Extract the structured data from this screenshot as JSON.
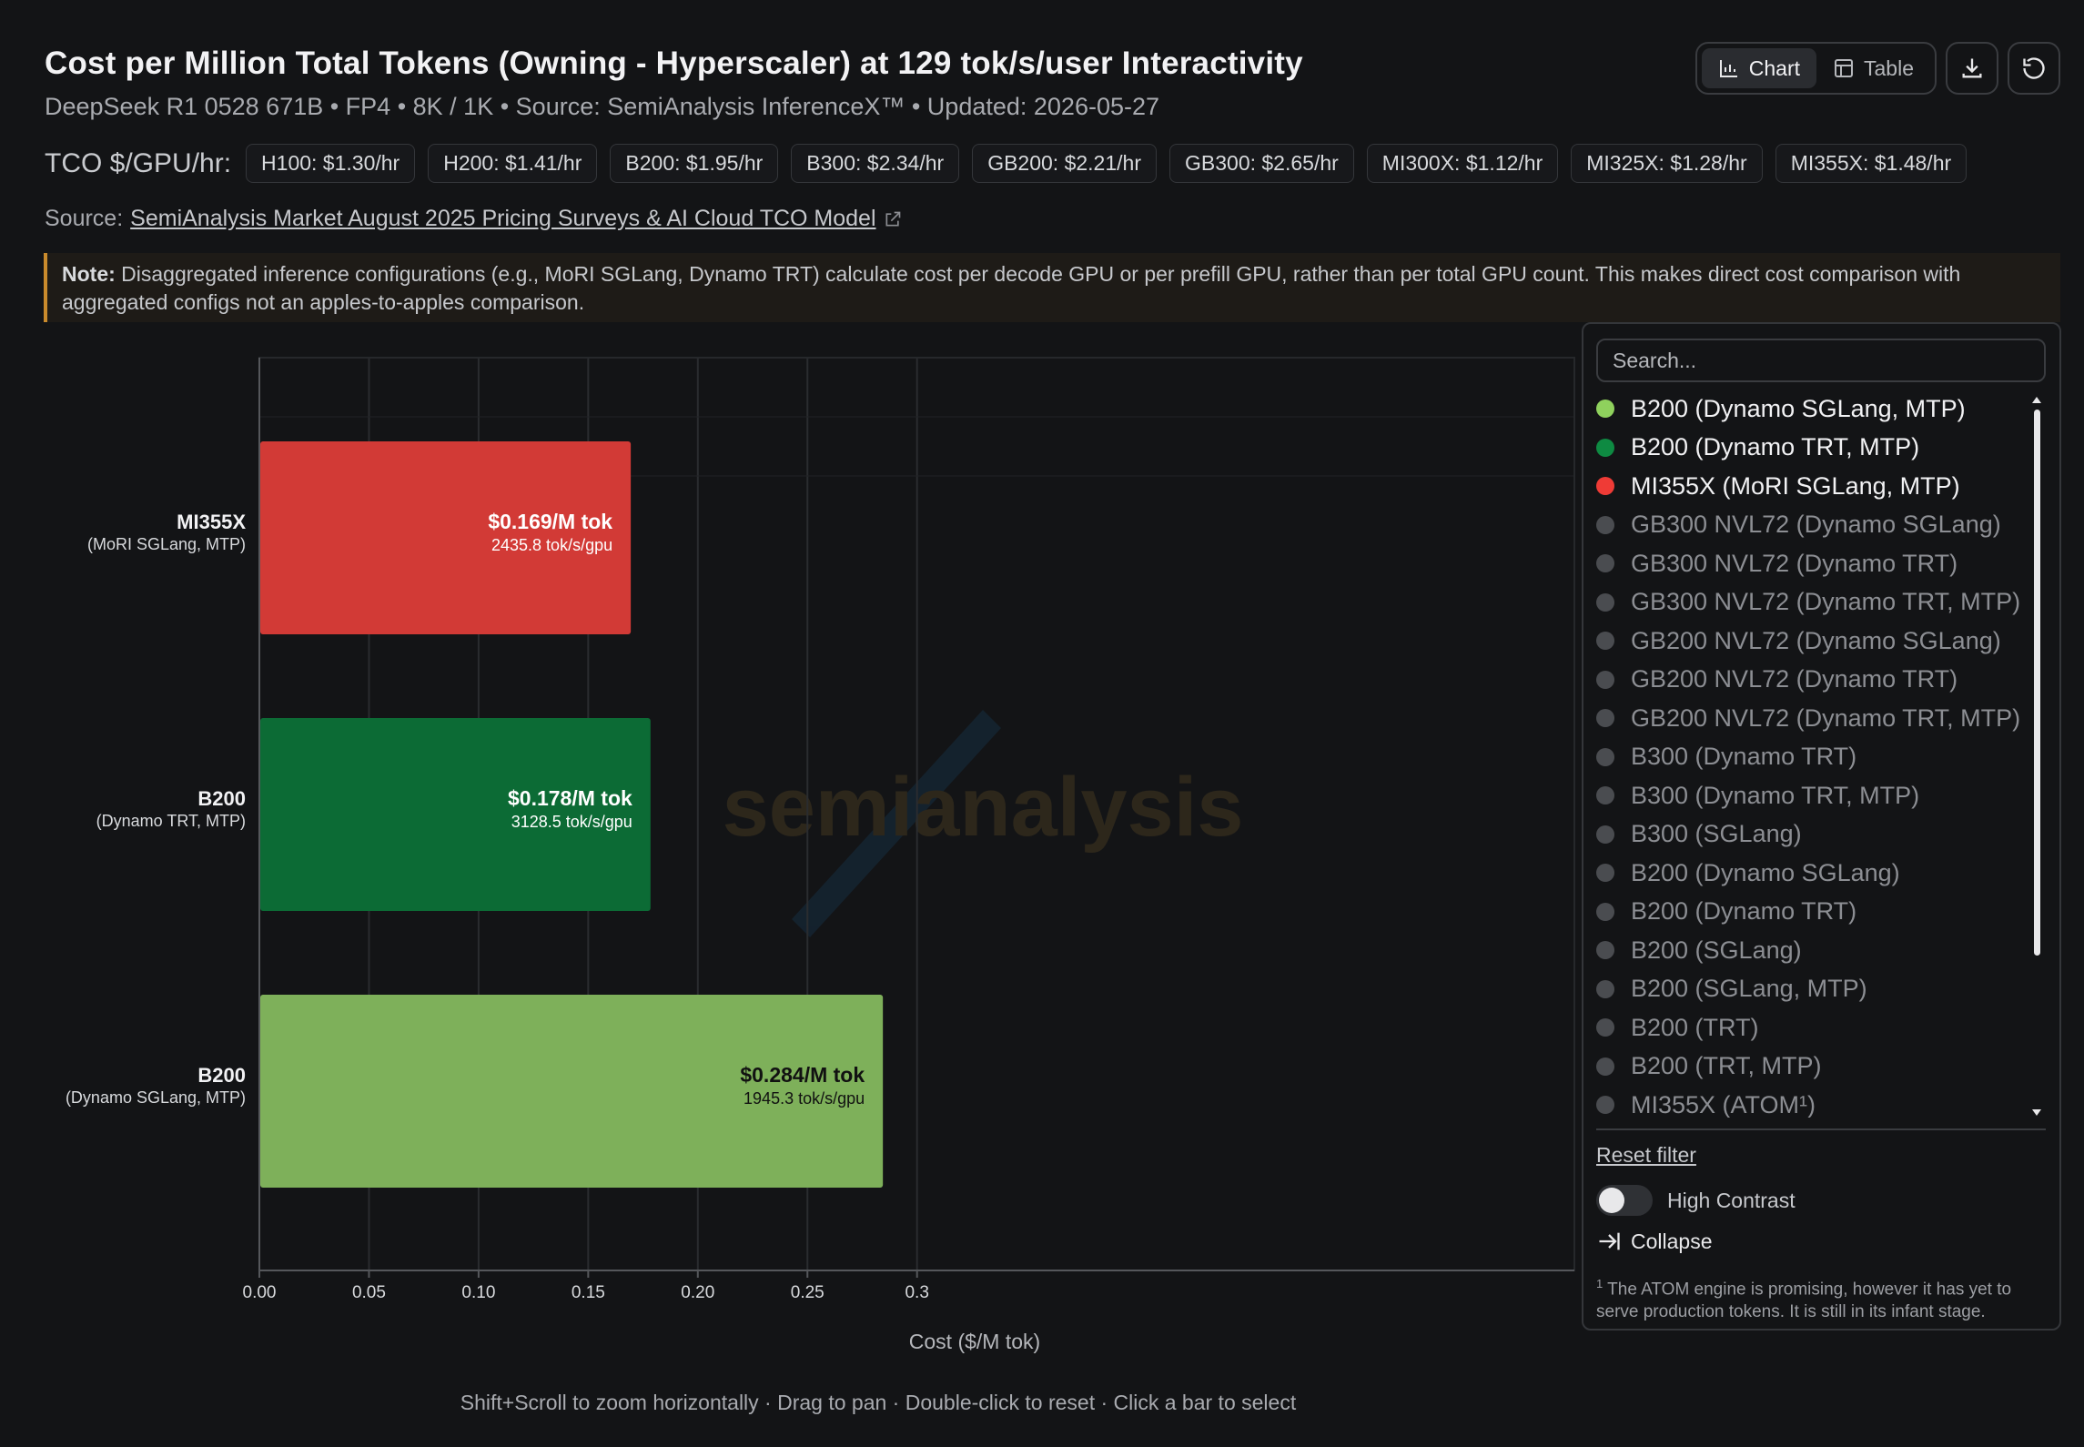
{
  "header": {
    "title": "Cost per Million Total Tokens (Owning - Hyperscaler) at 129 tok/s/user Interactivity",
    "subtitle": "DeepSeek R1 0528 671B • FP4 • 8K / 1K • Source: SemiAnalysis InferenceX™ • Updated: 2026-05-27"
  },
  "toolbar": {
    "chart_label": "Chart",
    "table_label": "Table"
  },
  "tco": {
    "label": "TCO $/GPU/hr:",
    "chips": [
      "H100: $1.30/hr",
      "H200: $1.41/hr",
      "B200: $1.95/hr",
      "B300: $2.34/hr",
      "GB200: $2.21/hr",
      "GB300: $2.65/hr",
      "MI300X: $1.12/hr",
      "MI325X: $1.28/hr",
      "MI355X: $1.48/hr"
    ]
  },
  "source": {
    "prefix": "Source:",
    "link_text": "SemiAnalysis Market August 2025 Pricing Surveys & AI Cloud TCO Model"
  },
  "note": {
    "bold": "Note:",
    "text": " Disaggregated inference configurations (e.g., MoRI SGLang, Dynamo TRT) calculate cost per decode GPU or per prefill GPU, rather than per total GPU count. This makes direct cost comparison with aggregated configs not an apples-to-apples comparison."
  },
  "chart_data": {
    "type": "bar",
    "orientation": "horizontal",
    "xlabel": "Cost ($/M tok)",
    "xlim": [
      0,
      0.3
    ],
    "xticks": [
      "0.00",
      "0.05",
      "0.10",
      "0.15",
      "0.20",
      "0.25",
      "0.3"
    ],
    "grid": true,
    "watermark": "semianalysis",
    "bars": [
      {
        "gpu": "MI355X",
        "config": "(MoRI SGLang, MTP)",
        "value": 0.169,
        "value_label": "$0.169/M tok",
        "throughput_label": "2435.8 tok/s/gpu",
        "color": "#d23a36",
        "text_color": "#ffffff"
      },
      {
        "gpu": "B200",
        "config": "(Dynamo TRT, MTP)",
        "value": 0.178,
        "value_label": "$0.178/M tok",
        "throughput_label": "3128.5 tok/s/gpu",
        "color": "#0c6b35",
        "text_color": "#ffffff"
      },
      {
        "gpu": "B200",
        "config": "(Dynamo SGLang, MTP)",
        "value": 0.284,
        "value_label": "$0.284/M tok",
        "throughput_label": "1945.3 tok/s/gpu",
        "color": "#7eb05a",
        "text_color": "#111111"
      }
    ]
  },
  "hint": "Shift+Scroll to zoom horizontally · Drag to pan · Double-click to reset · Click a bar to select",
  "legend": {
    "search_placeholder": "Search...",
    "items": [
      {
        "label": "B200 (Dynamo SGLang, MTP)",
        "color": "#8fd15d",
        "active": true
      },
      {
        "label": "B200 (Dynamo TRT, MTP)",
        "color": "#0e8a42",
        "active": true
      },
      {
        "label": "MI355X (MoRI SGLang, MTP)",
        "color": "#ef3b36",
        "active": true
      },
      {
        "label": "GB300 NVL72 (Dynamo SGLang)",
        "color": "#4a4c50",
        "active": false
      },
      {
        "label": "GB300 NVL72 (Dynamo TRT)",
        "color": "#4a4c50",
        "active": false
      },
      {
        "label": "GB300 NVL72 (Dynamo TRT, MTP)",
        "color": "#4a4c50",
        "active": false
      },
      {
        "label": "GB200 NVL72 (Dynamo SGLang)",
        "color": "#4a4c50",
        "active": false
      },
      {
        "label": "GB200 NVL72 (Dynamo TRT)",
        "color": "#4a4c50",
        "active": false
      },
      {
        "label": "GB200 NVL72 (Dynamo TRT, MTP)",
        "color": "#4a4c50",
        "active": false
      },
      {
        "label": "B300 (Dynamo TRT)",
        "color": "#4a4c50",
        "active": false
      },
      {
        "label": "B300 (Dynamo TRT, MTP)",
        "color": "#4a4c50",
        "active": false
      },
      {
        "label": "B300 (SGLang)",
        "color": "#4a4c50",
        "active": false
      },
      {
        "label": "B200 (Dynamo SGLang)",
        "color": "#4a4c50",
        "active": false
      },
      {
        "label": "B200 (Dynamo TRT)",
        "color": "#4a4c50",
        "active": false
      },
      {
        "label": "B200 (SGLang)",
        "color": "#4a4c50",
        "active": false
      },
      {
        "label": "B200 (SGLang, MTP)",
        "color": "#4a4c50",
        "active": false
      },
      {
        "label": "B200 (TRT)",
        "color": "#4a4c50",
        "active": false
      },
      {
        "label": "B200 (TRT, MTP)",
        "color": "#4a4c50",
        "active": false
      },
      {
        "label": "MI355X (ATOM¹)",
        "color": "#4a4c50",
        "active": false
      }
    ],
    "reset_label": "Reset filter",
    "high_contrast_label": "High Contrast",
    "collapse_label": "Collapse",
    "footnote_marker": "1",
    "footnote": " The ATOM engine is promising, however it has yet to serve production tokens. It is still in its infant stage."
  }
}
